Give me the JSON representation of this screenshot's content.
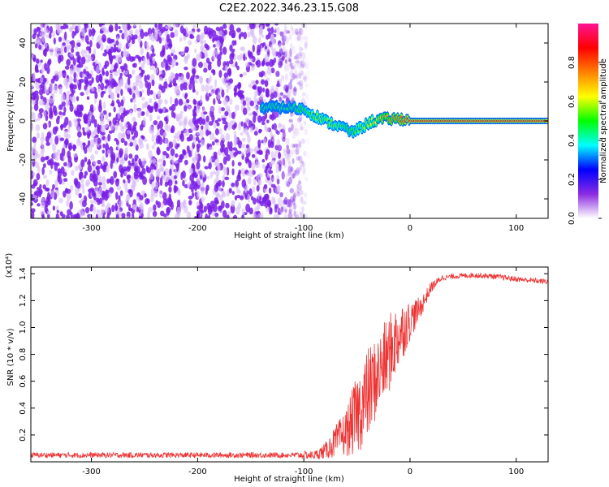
{
  "title": "C2E2.2022.346.23.15.G08",
  "chart_data": [
    {
      "type": "heatmap",
      "xlabel": "Height of straight line (km)",
      "ylabel": "Frequency (Hz)",
      "xlim": [
        -357,
        130
      ],
      "ylim": [
        -50,
        50
      ],
      "xticks": [
        -300,
        -200,
        -100,
        0,
        100
      ],
      "yticks": [
        -40,
        -20,
        0,
        20,
        40
      ],
      "colorbar": {
        "label": "Normalized spectral amplitude",
        "range": [
          0,
          1
        ],
        "ticks": [
          "0.0",
          "0.2",
          "0.4",
          "0.6",
          "0.8"
        ],
        "tick_values": [
          0,
          0.2,
          0.4,
          0.6,
          0.8
        ],
        "colormap": [
          "#ffffff",
          "#8a2be2",
          "#0000ff",
          "#00ffff",
          "#00ff00",
          "#ffff00",
          "#ff8000",
          "#ff0000",
          "#ff1493"
        ]
      },
      "noise_region": {
        "x": [
          -357,
          -95
        ],
        "y": [
          -50,
          50
        ],
        "level": 0.2
      },
      "signal_track": [
        {
          "x": -140,
          "f": 7,
          "amp": 0.45
        },
        {
          "x": -115,
          "f": 7,
          "amp": 0.45
        },
        {
          "x": -100,
          "f": 6,
          "amp": 0.5
        },
        {
          "x": -90,
          "f": 3,
          "amp": 0.55
        },
        {
          "x": -80,
          "f": 0,
          "amp": 0.55
        },
        {
          "x": -70,
          "f": -2,
          "amp": 0.55
        },
        {
          "x": -60,
          "f": -4,
          "amp": 0.5
        },
        {
          "x": -55,
          "f": -6,
          "amp": 0.5
        },
        {
          "x": -45,
          "f": -3,
          "amp": 0.55
        },
        {
          "x": -35,
          "f": 0,
          "amp": 0.6
        },
        {
          "x": -25,
          "f": 1,
          "amp": 0.7
        },
        {
          "x": -15,
          "f": 1,
          "amp": 0.75
        },
        {
          "x": -5,
          "f": 1,
          "amp": 0.8
        },
        {
          "x": 0,
          "f": 0,
          "amp": 0.85
        },
        {
          "x": 60,
          "f": 0,
          "amp": 0.85
        },
        {
          "x": 130,
          "f": 0,
          "amp": 0.85
        }
      ]
    },
    {
      "type": "line",
      "xlabel": "Height of straight line (km)",
      "ylabel": "SNR (10 * v/v)",
      "yscale_note": "(x10⁴)",
      "xlim": [
        -357,
        130
      ],
      "ylim": [
        0,
        1.45
      ],
      "xticks": [
        -300,
        -200,
        -100,
        0,
        100
      ],
      "yticks": [
        0.2,
        0.4,
        0.6,
        0.8,
        1.0,
        1.2,
        1.4
      ],
      "ytick_labels": [
        "0.2",
        "0.4",
        "0.6",
        "0.8",
        "1.0",
        "1.2",
        "1.4"
      ],
      "color": "#ee3333",
      "series": [
        {
          "x": [
            -357,
            -300,
            -250,
            -200,
            -150,
            -110,
            -100,
            -90,
            -80,
            -70,
            -60,
            -50,
            -40,
            -30,
            -20,
            -10,
            0,
            10,
            20,
            30,
            40,
            60,
            80,
            100,
            130
          ],
          "y": [
            0.05,
            0.05,
            0.05,
            0.05,
            0.05,
            0.05,
            0.05,
            0.05,
            0.08,
            0.15,
            0.22,
            0.35,
            0.5,
            0.65,
            0.8,
            0.95,
            1.05,
            1.15,
            1.3,
            1.37,
            1.38,
            1.39,
            1.38,
            1.36,
            1.34
          ],
          "noise": [
            0.02,
            0.02,
            0.02,
            0.02,
            0.02,
            0.02,
            0.03,
            0.03,
            0.06,
            0.12,
            0.18,
            0.3,
            0.35,
            0.3,
            0.3,
            0.25,
            0.15,
            0.08,
            0.04,
            0.02,
            0.02,
            0.02,
            0.02,
            0.02,
            0.02
          ]
        }
      ]
    }
  ]
}
